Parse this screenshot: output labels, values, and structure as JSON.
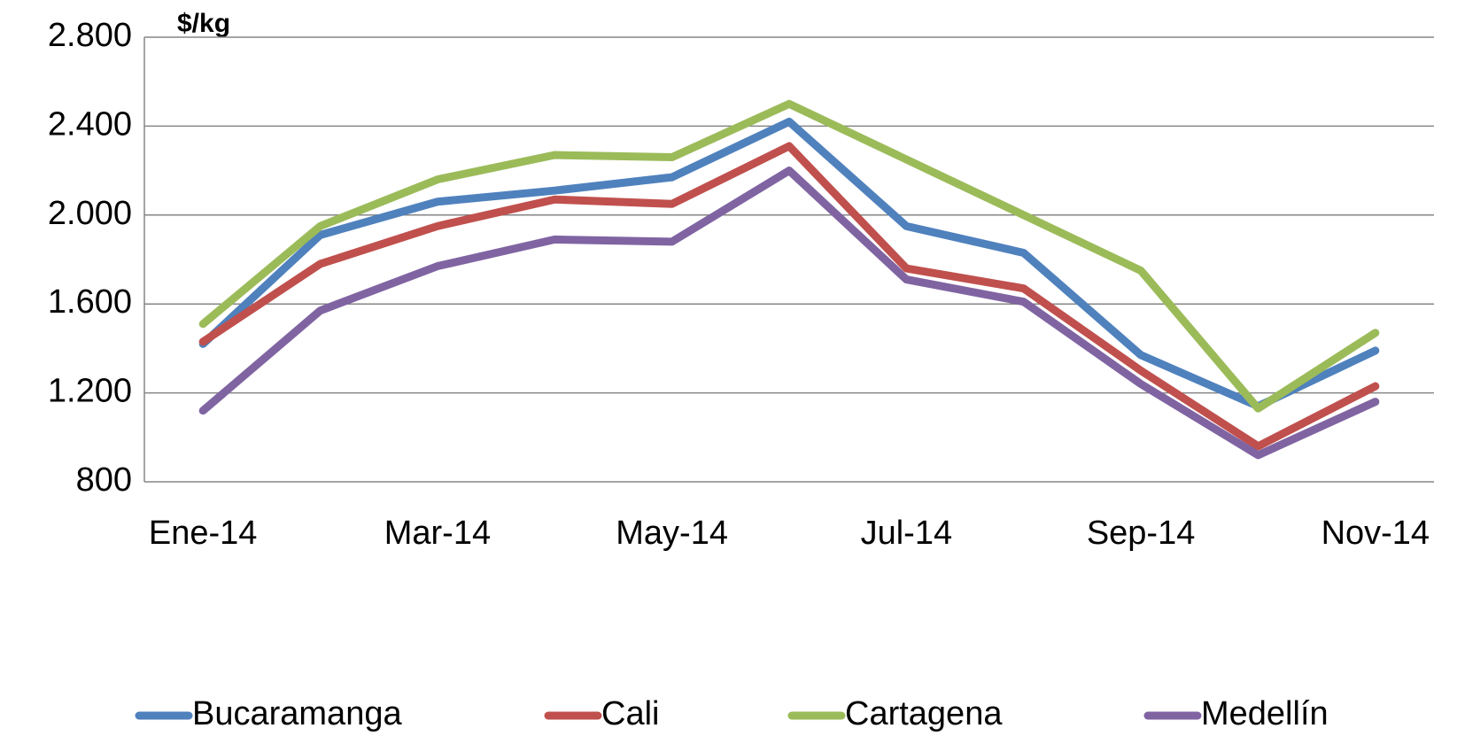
{
  "chart_data": {
    "type": "line",
    "ylabel": "$/kg",
    "categories": [
      "Ene-14",
      null,
      "Mar-14",
      null,
      "May-14",
      null,
      "Jul-14",
      null,
      "Sep-14",
      null,
      "Nov-14"
    ],
    "series": [
      {
        "name": "Bucaramanga",
        "color": "#4f81bd",
        "values": [
          1420,
          1910,
          2060,
          2110,
          2170,
          2420,
          1950,
          1830,
          1370,
          1140,
          1390
        ]
      },
      {
        "name": "Cali",
        "color": "#c0504d",
        "values": [
          1430,
          1780,
          1950,
          2070,
          2050,
          2310,
          1760,
          1670,
          1300,
          960,
          1230
        ]
      },
      {
        "name": "Cartagena",
        "color": "#9bbb59",
        "values": [
          1510,
          1950,
          2160,
          2270,
          2260,
          2500,
          2250,
          2000,
          1750,
          1130,
          1470
        ]
      },
      {
        "name": "Medellín",
        "color": "#8064a2",
        "values": [
          1120,
          1570,
          1770,
          1890,
          1880,
          2200,
          1710,
          1610,
          1240,
          920,
          1160
        ]
      }
    ],
    "ylim": [
      800,
      2800
    ],
    "yticks": [
      800,
      {
        "value": 1200,
        "label": "1.200"
      },
      {
        "value": 1600,
        "label": "1.600"
      },
      {
        "value": 2000,
        "label": "2.000"
      },
      {
        "value": 2400,
        "label": "2.400"
      },
      {
        "value": 2800,
        "label": "2.800"
      }
    ],
    "grid": true,
    "legend": "bottom"
  }
}
